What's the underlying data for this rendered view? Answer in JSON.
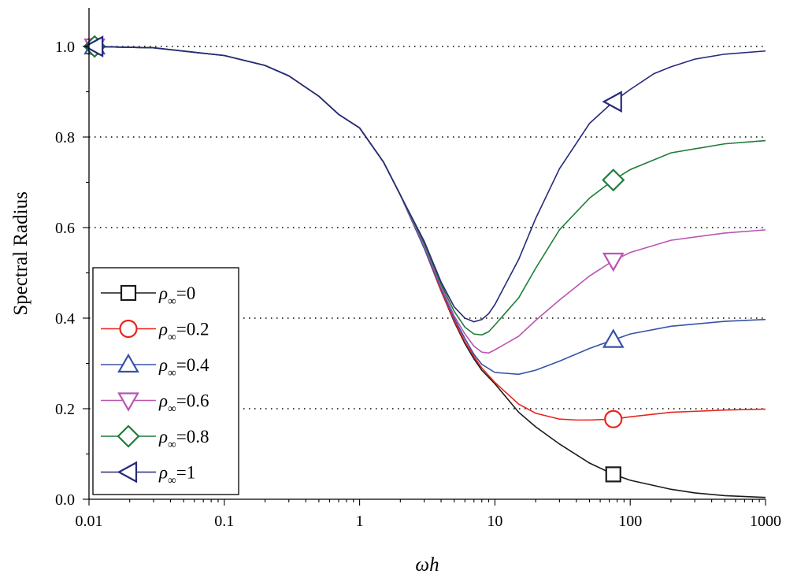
{
  "chart_data": {
    "type": "line",
    "title": "",
    "xlabel": "ωh",
    "ylabel": "Spectral Radius",
    "xscale": "log",
    "xlim": [
      0.01,
      1000
    ],
    "ylim": [
      0.0,
      1.05
    ],
    "xticks": [
      0.01,
      0.1,
      1,
      10,
      100,
      1000
    ],
    "xtick_labels": [
      "0.01",
      "0.1",
      "1",
      "10",
      "100",
      "1000"
    ],
    "yticks": [
      0.0,
      0.2,
      0.4,
      0.6,
      0.8,
      1.0
    ],
    "ytick_labels": [
      "0.0",
      "0.2",
      "0.4",
      "0.6",
      "0.8",
      "1.0"
    ],
    "grid": "horizontal dotted",
    "legend_position": "lower-left",
    "legend_rho_symbol": "ρ",
    "legend_inf_symbol": "∞",
    "series": [
      {
        "name": "ρ∞=0",
        "rho_value": "0",
        "marker": "square",
        "color": "#1a1a1a",
        "marker_points": [
          [
            0.011,
            1.0
          ],
          [
            75,
            0.055
          ]
        ],
        "points": [
          [
            0.01,
            1.0
          ],
          [
            0.03,
            0.997
          ],
          [
            0.1,
            0.98
          ],
          [
            0.2,
            0.958
          ],
          [
            0.3,
            0.935
          ],
          [
            0.5,
            0.89
          ],
          [
            0.7,
            0.85
          ],
          [
            1,
            0.82
          ],
          [
            1.5,
            0.745
          ],
          [
            2,
            0.672
          ],
          [
            3,
            0.555
          ],
          [
            4,
            0.46
          ],
          [
            5,
            0.392
          ],
          [
            6,
            0.344
          ],
          [
            7,
            0.31
          ],
          [
            8,
            0.285
          ],
          [
            10,
            0.255
          ],
          [
            15,
            0.192
          ],
          [
            20,
            0.16
          ],
          [
            30,
            0.122
          ],
          [
            50,
            0.08
          ],
          [
            75,
            0.055
          ],
          [
            100,
            0.042
          ],
          [
            200,
            0.022
          ],
          [
            300,
            0.014
          ],
          [
            500,
            0.008
          ],
          [
            1000,
            0.004
          ]
        ]
      },
      {
        "name": "ρ∞=0.2",
        "rho_value": "0.2",
        "marker": "circle",
        "color": "#e8261c",
        "marker_points": [
          [
            0.011,
            1.0
          ],
          [
            75,
            0.177
          ]
        ],
        "points": [
          [
            0.01,
            1.0
          ],
          [
            0.03,
            0.997
          ],
          [
            0.1,
            0.98
          ],
          [
            0.2,
            0.958
          ],
          [
            0.3,
            0.935
          ],
          [
            0.5,
            0.89
          ],
          [
            0.7,
            0.85
          ],
          [
            1,
            0.82
          ],
          [
            1.5,
            0.745
          ],
          [
            2,
            0.672
          ],
          [
            3,
            0.555
          ],
          [
            4,
            0.46
          ],
          [
            5,
            0.395
          ],
          [
            6,
            0.348
          ],
          [
            7,
            0.315
          ],
          [
            8,
            0.29
          ],
          [
            10,
            0.258
          ],
          [
            15,
            0.21
          ],
          [
            20,
            0.19
          ],
          [
            30,
            0.177
          ],
          [
            40,
            0.175
          ],
          [
            50,
            0.175
          ],
          [
            75,
            0.177
          ],
          [
            100,
            0.182
          ],
          [
            200,
            0.192
          ],
          [
            500,
            0.197
          ],
          [
            1000,
            0.199
          ]
        ]
      },
      {
        "name": "ρ∞=0.4",
        "rho_value": "0.4",
        "marker": "triangle-up",
        "color": "#3852a8",
        "marker_points": [
          [
            0.011,
            1.0
          ],
          [
            75,
            0.352
          ]
        ],
        "points": [
          [
            0.01,
            1.0
          ],
          [
            0.03,
            0.997
          ],
          [
            0.1,
            0.98
          ],
          [
            0.2,
            0.958
          ],
          [
            0.3,
            0.935
          ],
          [
            0.5,
            0.89
          ],
          [
            0.7,
            0.85
          ],
          [
            1,
            0.82
          ],
          [
            1.5,
            0.745
          ],
          [
            2,
            0.672
          ],
          [
            3,
            0.555
          ],
          [
            4,
            0.465
          ],
          [
            5,
            0.4
          ],
          [
            6,
            0.355
          ],
          [
            7,
            0.32
          ],
          [
            8,
            0.298
          ],
          [
            10,
            0.28
          ],
          [
            15,
            0.276
          ],
          [
            20,
            0.285
          ],
          [
            30,
            0.305
          ],
          [
            50,
            0.333
          ],
          [
            75,
            0.352
          ],
          [
            100,
            0.365
          ],
          [
            200,
            0.382
          ],
          [
            500,
            0.393
          ],
          [
            1000,
            0.397
          ]
        ]
      },
      {
        "name": "ρ∞=0.6",
        "rho_value": "0.6",
        "marker": "triangle-down",
        "color": "#bb55b2",
        "marker_points": [
          [
            0.011,
            1.0
          ],
          [
            75,
            0.527
          ]
        ],
        "points": [
          [
            0.01,
            1.0
          ],
          [
            0.03,
            0.997
          ],
          [
            0.1,
            0.98
          ],
          [
            0.2,
            0.958
          ],
          [
            0.3,
            0.935
          ],
          [
            0.5,
            0.89
          ],
          [
            0.7,
            0.85
          ],
          [
            1,
            0.82
          ],
          [
            1.5,
            0.745
          ],
          [
            2,
            0.672
          ],
          [
            3,
            0.56
          ],
          [
            4,
            0.47
          ],
          [
            5,
            0.405
          ],
          [
            6,
            0.365
          ],
          [
            7,
            0.338
          ],
          [
            8,
            0.325
          ],
          [
            9,
            0.323
          ],
          [
            10,
            0.33
          ],
          [
            15,
            0.36
          ],
          [
            20,
            0.395
          ],
          [
            30,
            0.44
          ],
          [
            50,
            0.493
          ],
          [
            75,
            0.527
          ],
          [
            100,
            0.545
          ],
          [
            200,
            0.572
          ],
          [
            500,
            0.588
          ],
          [
            1000,
            0.595
          ]
        ]
      },
      {
        "name": "ρ∞=0.8",
        "rho_value": "0.8",
        "marker": "diamond",
        "color": "#1e7c3a",
        "marker_points": [
          [
            0.011,
            1.0
          ],
          [
            75,
            0.705
          ]
        ],
        "points": [
          [
            0.01,
            1.0
          ],
          [
            0.03,
            0.997
          ],
          [
            0.1,
            0.98
          ],
          [
            0.2,
            0.958
          ],
          [
            0.3,
            0.935
          ],
          [
            0.5,
            0.89
          ],
          [
            0.7,
            0.85
          ],
          [
            1,
            0.82
          ],
          [
            1.5,
            0.745
          ],
          [
            2,
            0.672
          ],
          [
            3,
            0.565
          ],
          [
            4,
            0.475
          ],
          [
            5,
            0.415
          ],
          [
            6,
            0.38
          ],
          [
            7,
            0.365
          ],
          [
            8,
            0.363
          ],
          [
            9,
            0.37
          ],
          [
            10,
            0.385
          ],
          [
            15,
            0.445
          ],
          [
            20,
            0.51
          ],
          [
            30,
            0.595
          ],
          [
            50,
            0.665
          ],
          [
            75,
            0.705
          ],
          [
            100,
            0.728
          ],
          [
            200,
            0.765
          ],
          [
            500,
            0.785
          ],
          [
            1000,
            0.792
          ]
        ]
      },
      {
        "name": "ρ∞=1",
        "rho_value": "1",
        "marker": "triangle-left",
        "color": "#262a7a",
        "marker_points": [
          [
            0.011,
            1.0
          ],
          [
            75,
            0.878
          ]
        ],
        "points": [
          [
            0.01,
            1.0
          ],
          [
            0.03,
            0.997
          ],
          [
            0.1,
            0.98
          ],
          [
            0.2,
            0.958
          ],
          [
            0.3,
            0.935
          ],
          [
            0.5,
            0.89
          ],
          [
            0.7,
            0.85
          ],
          [
            1,
            0.82
          ],
          [
            1.5,
            0.745
          ],
          [
            2,
            0.672
          ],
          [
            3,
            0.57
          ],
          [
            4,
            0.48
          ],
          [
            5,
            0.425
          ],
          [
            6,
            0.4
          ],
          [
            7,
            0.392
          ],
          [
            8,
            0.397
          ],
          [
            9,
            0.41
          ],
          [
            10,
            0.43
          ],
          [
            15,
            0.53
          ],
          [
            20,
            0.62
          ],
          [
            30,
            0.73
          ],
          [
            50,
            0.83
          ],
          [
            75,
            0.878
          ],
          [
            100,
            0.905
          ],
          [
            150,
            0.94
          ],
          [
            200,
            0.955
          ],
          [
            300,
            0.972
          ],
          [
            500,
            0.983
          ],
          [
            1000,
            0.99
          ]
        ]
      }
    ]
  }
}
